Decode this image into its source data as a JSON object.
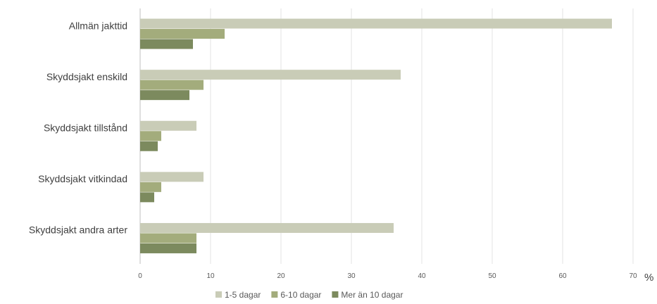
{
  "chart_data": {
    "type": "bar",
    "orientation": "horizontal",
    "categories": [
      "Allmän jakttid",
      "Skyddsjakt enskild",
      "Skyddsjakt tillstånd",
      "Skyddsjakt vitkindad",
      "Skyddsjakt andra arter"
    ],
    "series": [
      {
        "name": "1-5 dagar",
        "color": "#c9ccb7",
        "values": [
          67,
          37,
          8,
          9,
          36
        ]
      },
      {
        "name": "6-10 dagar",
        "color": "#a3ac7c",
        "values": [
          12,
          9,
          3,
          3,
          8
        ]
      },
      {
        "name": "Mer än 10 dagar",
        "color": "#7c8a5e",
        "values": [
          7.5,
          7,
          2.5,
          2,
          8
        ]
      }
    ],
    "x_ticks": [
      0,
      10,
      20,
      30,
      40,
      50,
      60,
      70
    ],
    "xlim": [
      0,
      70
    ],
    "unit": "%",
    "title": "",
    "xlabel": "",
    "ylabel": "",
    "grid": "vertical",
    "legend_position": "bottom"
  }
}
